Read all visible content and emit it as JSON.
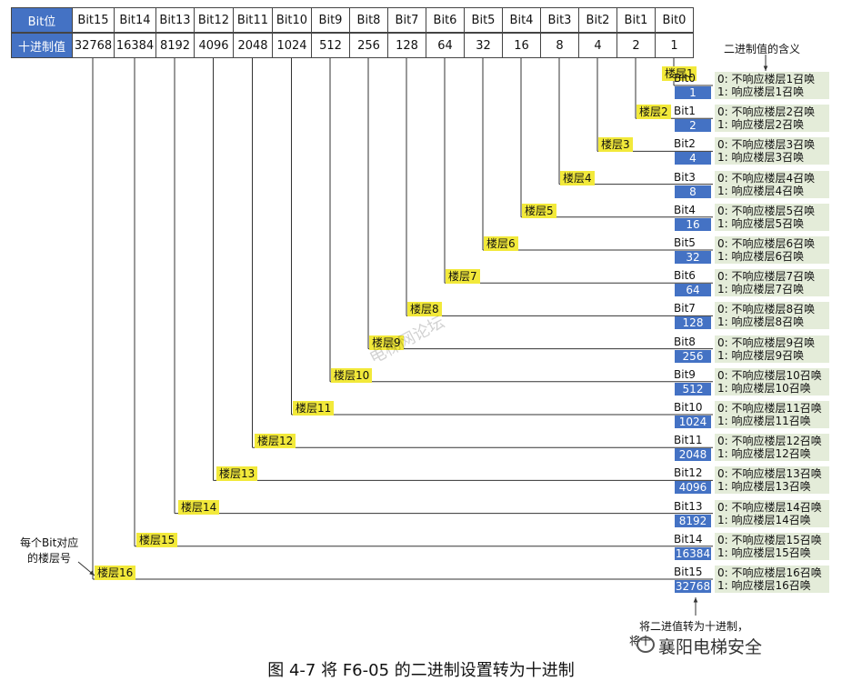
{
  "header": {
    "bit_label": "Bit位",
    "dec_label": "十进制值",
    "bits": [
      "Bit15",
      "Bit14",
      "Bit13",
      "Bit12",
      "Bit11",
      "Bit10",
      "Bit9",
      "Bit8",
      "Bit7",
      "Bit6",
      "Bit5",
      "Bit4",
      "Bit3",
      "Bit2",
      "Bit1",
      "Bit0"
    ],
    "decimals": [
      "32768",
      "16384",
      "8192",
      "4096",
      "2048",
      "1024",
      "512",
      "256",
      "128",
      "64",
      "32",
      "16",
      "8",
      "4",
      "2",
      "1"
    ]
  },
  "rows": [
    {
      "floor": "楼层1",
      "bit": "Bit0",
      "dec": "1",
      "m0": "0: 不响应楼层1召唤",
      "m1": "1: 响应楼层1召唤"
    },
    {
      "floor": "楼层2",
      "bit": "Bit1",
      "dec": "2",
      "m0": "0: 不响应楼层2召唤",
      "m1": "1: 响应楼层2召唤"
    },
    {
      "floor": "楼层3",
      "bit": "Bit2",
      "dec": "4",
      "m0": "0: 不响应楼层3召唤",
      "m1": "1: 响应楼层3召唤"
    },
    {
      "floor": "楼层4",
      "bit": "Bit3",
      "dec": "8",
      "m0": "0: 不响应楼层4召唤",
      "m1": "1: 响应楼层4召唤"
    },
    {
      "floor": "楼层5",
      "bit": "Bit4",
      "dec": "16",
      "m0": "0: 不响应楼层5召唤",
      "m1": "1: 响应楼层5召唤"
    },
    {
      "floor": "楼层6",
      "bit": "Bit5",
      "dec": "32",
      "m0": "0: 不响应楼层6召唤",
      "m1": "1: 响应楼层6召唤"
    },
    {
      "floor": "楼层7",
      "bit": "Bit6",
      "dec": "64",
      "m0": "0: 不响应楼层7召唤",
      "m1": "1: 响应楼层7召唤"
    },
    {
      "floor": "楼层8",
      "bit": "Bit7",
      "dec": "128",
      "m0": "0: 不响应楼层8召唤",
      "m1": "1: 响应楼层8召唤"
    },
    {
      "floor": "楼层9",
      "bit": "Bit8",
      "dec": "256",
      "m0": "0: 不响应楼层9召唤",
      "m1": "1: 响应楼层9召唤"
    },
    {
      "floor": "楼层10",
      "bit": "Bit9",
      "dec": "512",
      "m0": "0: 不响应楼层10召唤",
      "m1": "1: 响应楼层10召唤"
    },
    {
      "floor": "楼层11",
      "bit": "Bit10",
      "dec": "1024",
      "m0": "0: 不响应楼层11召唤",
      "m1": "1: 响应楼层11召唤"
    },
    {
      "floor": "楼层12",
      "bit": "Bit11",
      "dec": "2048",
      "m0": "0: 不响应楼层12召唤",
      "m1": "1: 响应楼层12召唤"
    },
    {
      "floor": "楼层13",
      "bit": "Bit12",
      "dec": "4096",
      "m0": "0: 不响应楼层13召唤",
      "m1": "1: 响应楼层13召唤"
    },
    {
      "floor": "楼层14",
      "bit": "Bit13",
      "dec": "8192",
      "m0": "0: 不响应楼层14召唤",
      "m1": "1: 响应楼层14召唤"
    },
    {
      "floor": "楼层15",
      "bit": "Bit14",
      "dec": "16384",
      "m0": "0: 不响应楼层15召唤",
      "m1": "1: 响应楼层15召唤"
    },
    {
      "floor": "楼层16",
      "bit": "Bit15",
      "dec": "32768",
      "m0": "0: 不响应楼层16召唤",
      "m1": "1: 响应楼层16召唤"
    }
  ],
  "notes": {
    "meaning": "二进制值的含义",
    "per_bit_1": "每个Bit对应",
    "per_bit_2": "的楼层号",
    "convert": "将二进值转为十进制，",
    "convert_2": "将十",
    "watermark": "电梯网论坛",
    "brand": "襄阳电梯安全"
  },
  "caption": "图 4-7  将 F6-05 的二进制设置转为十进制",
  "colors": {
    "blue": "#4472c4",
    "yellow": "#f2e93a",
    "green": "#e4ecd9"
  }
}
